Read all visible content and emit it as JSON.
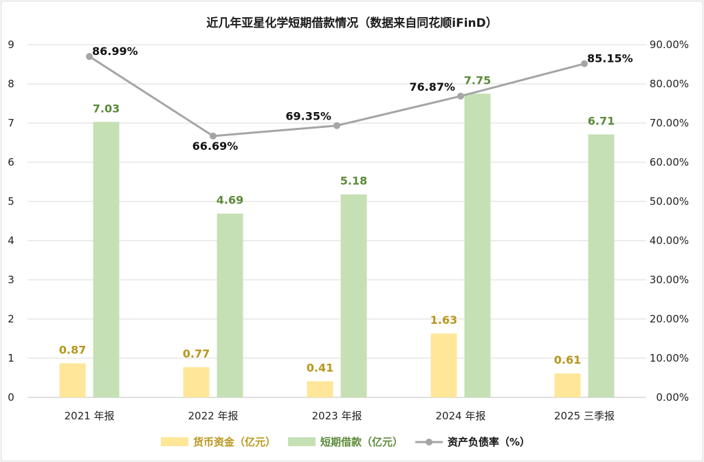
{
  "chart_data": {
    "type": "bar",
    "title": "近几年亚星化学短期借款情况（数据来自同花顺iFinD）",
    "categories": [
      "2021 年报",
      "2022 年报",
      "2023 年报",
      "2024 年报",
      "2025 三季报"
    ],
    "series": [
      {
        "name": "货币资金（亿元）",
        "kind": "bar",
        "axis": "left",
        "color": "#ffe699",
        "label_color": "#b8961a",
        "values": [
          0.87,
          0.77,
          0.41,
          1.63,
          0.61
        ],
        "labels": [
          "0.87",
          "0.77",
          "0.41",
          "1.63",
          "0.61"
        ]
      },
      {
        "name": "短期借款（亿元）",
        "kind": "bar",
        "axis": "left",
        "color": "#c5e0b4",
        "label_color": "#5d8a3a",
        "values": [
          7.03,
          4.69,
          5.18,
          7.75,
          6.71
        ],
        "labels": [
          "7.03",
          "4.69",
          "5.18",
          "7.75",
          "6.71"
        ]
      },
      {
        "name": "资产负债率（%）",
        "kind": "line",
        "axis": "right",
        "color": "#a5a5a5",
        "label_color": "#111111",
        "values": [
          86.99,
          66.69,
          69.35,
          76.87,
          85.15
        ],
        "labels": [
          "86.99%",
          "66.69%",
          "69.35%",
          "76.87%",
          "85.15%"
        ]
      }
    ],
    "y_left": {
      "min": 0,
      "max": 9,
      "ticks": [
        "0",
        "1",
        "2",
        "3",
        "4",
        "5",
        "6",
        "7",
        "8",
        "9"
      ]
    },
    "y_right": {
      "min": 0,
      "max": 90,
      "ticks": [
        "0.00%",
        "10.00%",
        "20.00%",
        "30.00%",
        "40.00%",
        "50.00%",
        "60.00%",
        "70.00%",
        "80.00%",
        "90.00%"
      ]
    },
    "grid": true,
    "legend_position": "bottom"
  }
}
